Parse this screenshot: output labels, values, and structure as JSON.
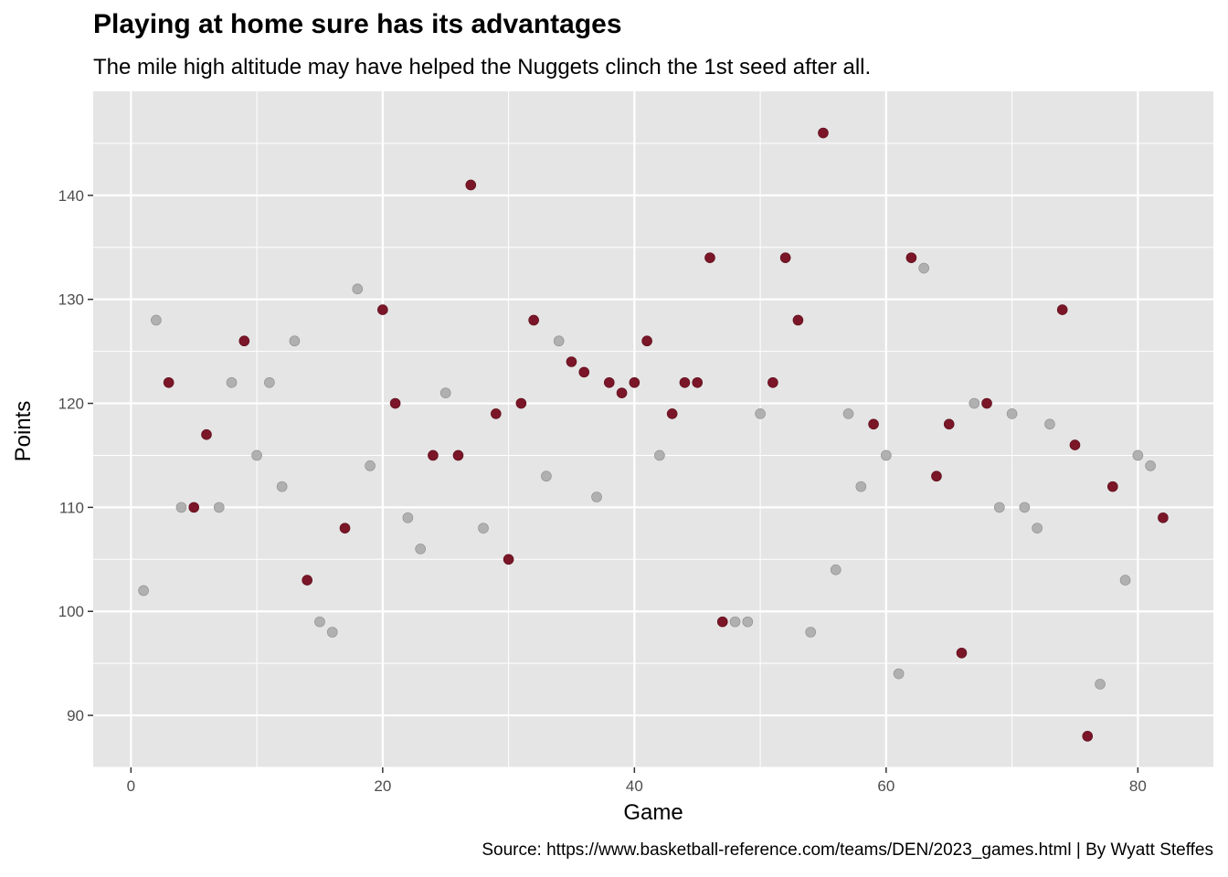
{
  "chart_data": {
    "type": "scatter",
    "title": "Playing at home sure has its advantages",
    "subtitle": "The mile high altitude may have helped the Nuggets clinch the 1st seed after all.",
    "caption": "Source: https://www.basketball-reference.com/teams/DEN/2023_games.html | By Wyatt Steffes",
    "xlabel": "Game",
    "ylabel": "Points",
    "xlim": [
      -3,
      86
    ],
    "ylim": [
      85,
      150
    ],
    "xticks": [
      0,
      20,
      40,
      60,
      80
    ],
    "yticks": [
      90,
      100,
      110,
      120,
      130,
      140
    ],
    "grid": true,
    "legend": "none",
    "colors": {
      "home": "#7a1627",
      "away": "#b0b0b0",
      "panel": "#e5e5e5",
      "grid": "#ffffff"
    },
    "points": [
      {
        "x": 1,
        "y": 102,
        "g": "away"
      },
      {
        "x": 2,
        "y": 128,
        "g": "away"
      },
      {
        "x": 3,
        "y": 122,
        "g": "home"
      },
      {
        "x": 4,
        "y": 110,
        "g": "away"
      },
      {
        "x": 5,
        "y": 110,
        "g": "home"
      },
      {
        "x": 6,
        "y": 117,
        "g": "home"
      },
      {
        "x": 7,
        "y": 110,
        "g": "away"
      },
      {
        "x": 8,
        "y": 122,
        "g": "away"
      },
      {
        "x": 9,
        "y": 126,
        "g": "home"
      },
      {
        "x": 10,
        "y": 115,
        "g": "away"
      },
      {
        "x": 11,
        "y": 122,
        "g": "away"
      },
      {
        "x": 12,
        "y": 112,
        "g": "away"
      },
      {
        "x": 13,
        "y": 126,
        "g": "away"
      },
      {
        "x": 14,
        "y": 103,
        "g": "home"
      },
      {
        "x": 15,
        "y": 99,
        "g": "away"
      },
      {
        "x": 16,
        "y": 98,
        "g": "away"
      },
      {
        "x": 17,
        "y": 108,
        "g": "home"
      },
      {
        "x": 18,
        "y": 131,
        "g": "away"
      },
      {
        "x": 19,
        "y": 114,
        "g": "away"
      },
      {
        "x": 20,
        "y": 129,
        "g": "home"
      },
      {
        "x": 21,
        "y": 120,
        "g": "home"
      },
      {
        "x": 22,
        "y": 109,
        "g": "away"
      },
      {
        "x": 23,
        "y": 106,
        "g": "away"
      },
      {
        "x": 24,
        "y": 115,
        "g": "home"
      },
      {
        "x": 25,
        "y": 121,
        "g": "away"
      },
      {
        "x": 26,
        "y": 115,
        "g": "home"
      },
      {
        "x": 27,
        "y": 141,
        "g": "home"
      },
      {
        "x": 28,
        "y": 108,
        "g": "away"
      },
      {
        "x": 29,
        "y": 119,
        "g": "home"
      },
      {
        "x": 30,
        "y": 105,
        "g": "home"
      },
      {
        "x": 31,
        "y": 120,
        "g": "home"
      },
      {
        "x": 32,
        "y": 128,
        "g": "home"
      },
      {
        "x": 33,
        "y": 113,
        "g": "away"
      },
      {
        "x": 34,
        "y": 126,
        "g": "away"
      },
      {
        "x": 35,
        "y": 124,
        "g": "home"
      },
      {
        "x": 36,
        "y": 123,
        "g": "home"
      },
      {
        "x": 37,
        "y": 111,
        "g": "away"
      },
      {
        "x": 38,
        "y": 122,
        "g": "home"
      },
      {
        "x": 39,
        "y": 121,
        "g": "home"
      },
      {
        "x": 40,
        "y": 122,
        "g": "home"
      },
      {
        "x": 41,
        "y": 126,
        "g": "home"
      },
      {
        "x": 42,
        "y": 115,
        "g": "away"
      },
      {
        "x": 43,
        "y": 119,
        "g": "home"
      },
      {
        "x": 44,
        "y": 122,
        "g": "home"
      },
      {
        "x": 45,
        "y": 122,
        "g": "home"
      },
      {
        "x": 46,
        "y": 134,
        "g": "home"
      },
      {
        "x": 47,
        "y": 99,
        "g": "home"
      },
      {
        "x": 48,
        "y": 99,
        "g": "away"
      },
      {
        "x": 49,
        "y": 99,
        "g": "away"
      },
      {
        "x": 50,
        "y": 119,
        "g": "away"
      },
      {
        "x": 51,
        "y": 122,
        "g": "home"
      },
      {
        "x": 52,
        "y": 134,
        "g": "home"
      },
      {
        "x": 53,
        "y": 128,
        "g": "home"
      },
      {
        "x": 54,
        "y": 98,
        "g": "away"
      },
      {
        "x": 55,
        "y": 146,
        "g": "home"
      },
      {
        "x": 56,
        "y": 104,
        "g": "away"
      },
      {
        "x": 57,
        "y": 119,
        "g": "away"
      },
      {
        "x": 58,
        "y": 112,
        "g": "away"
      },
      {
        "x": 59,
        "y": 118,
        "g": "home"
      },
      {
        "x": 60,
        "y": 115,
        "g": "away"
      },
      {
        "x": 61,
        "y": 94,
        "g": "away"
      },
      {
        "x": 62,
        "y": 134,
        "g": "home"
      },
      {
        "x": 63,
        "y": 133,
        "g": "away"
      },
      {
        "x": 64,
        "y": 113,
        "g": "home"
      },
      {
        "x": 65,
        "y": 118,
        "g": "home"
      },
      {
        "x": 66,
        "y": 96,
        "g": "home"
      },
      {
        "x": 67,
        "y": 120,
        "g": "away"
      },
      {
        "x": 68,
        "y": 120,
        "g": "home"
      },
      {
        "x": 69,
        "y": 110,
        "g": "away"
      },
      {
        "x": 70,
        "y": 119,
        "g": "away"
      },
      {
        "x": 71,
        "y": 110,
        "g": "away"
      },
      {
        "x": 72,
        "y": 108,
        "g": "away"
      },
      {
        "x": 73,
        "y": 118,
        "g": "away"
      },
      {
        "x": 74,
        "y": 129,
        "g": "home"
      },
      {
        "x": 75,
        "y": 116,
        "g": "home"
      },
      {
        "x": 76,
        "y": 88,
        "g": "home"
      },
      {
        "x": 77,
        "y": 93,
        "g": "away"
      },
      {
        "x": 78,
        "y": 112,
        "g": "home"
      },
      {
        "x": 79,
        "y": 103,
        "g": "away"
      },
      {
        "x": 80,
        "y": 115,
        "g": "away"
      },
      {
        "x": 81,
        "y": 114,
        "g": "away"
      },
      {
        "x": 82,
        "y": 109,
        "g": "home"
      }
    ]
  }
}
